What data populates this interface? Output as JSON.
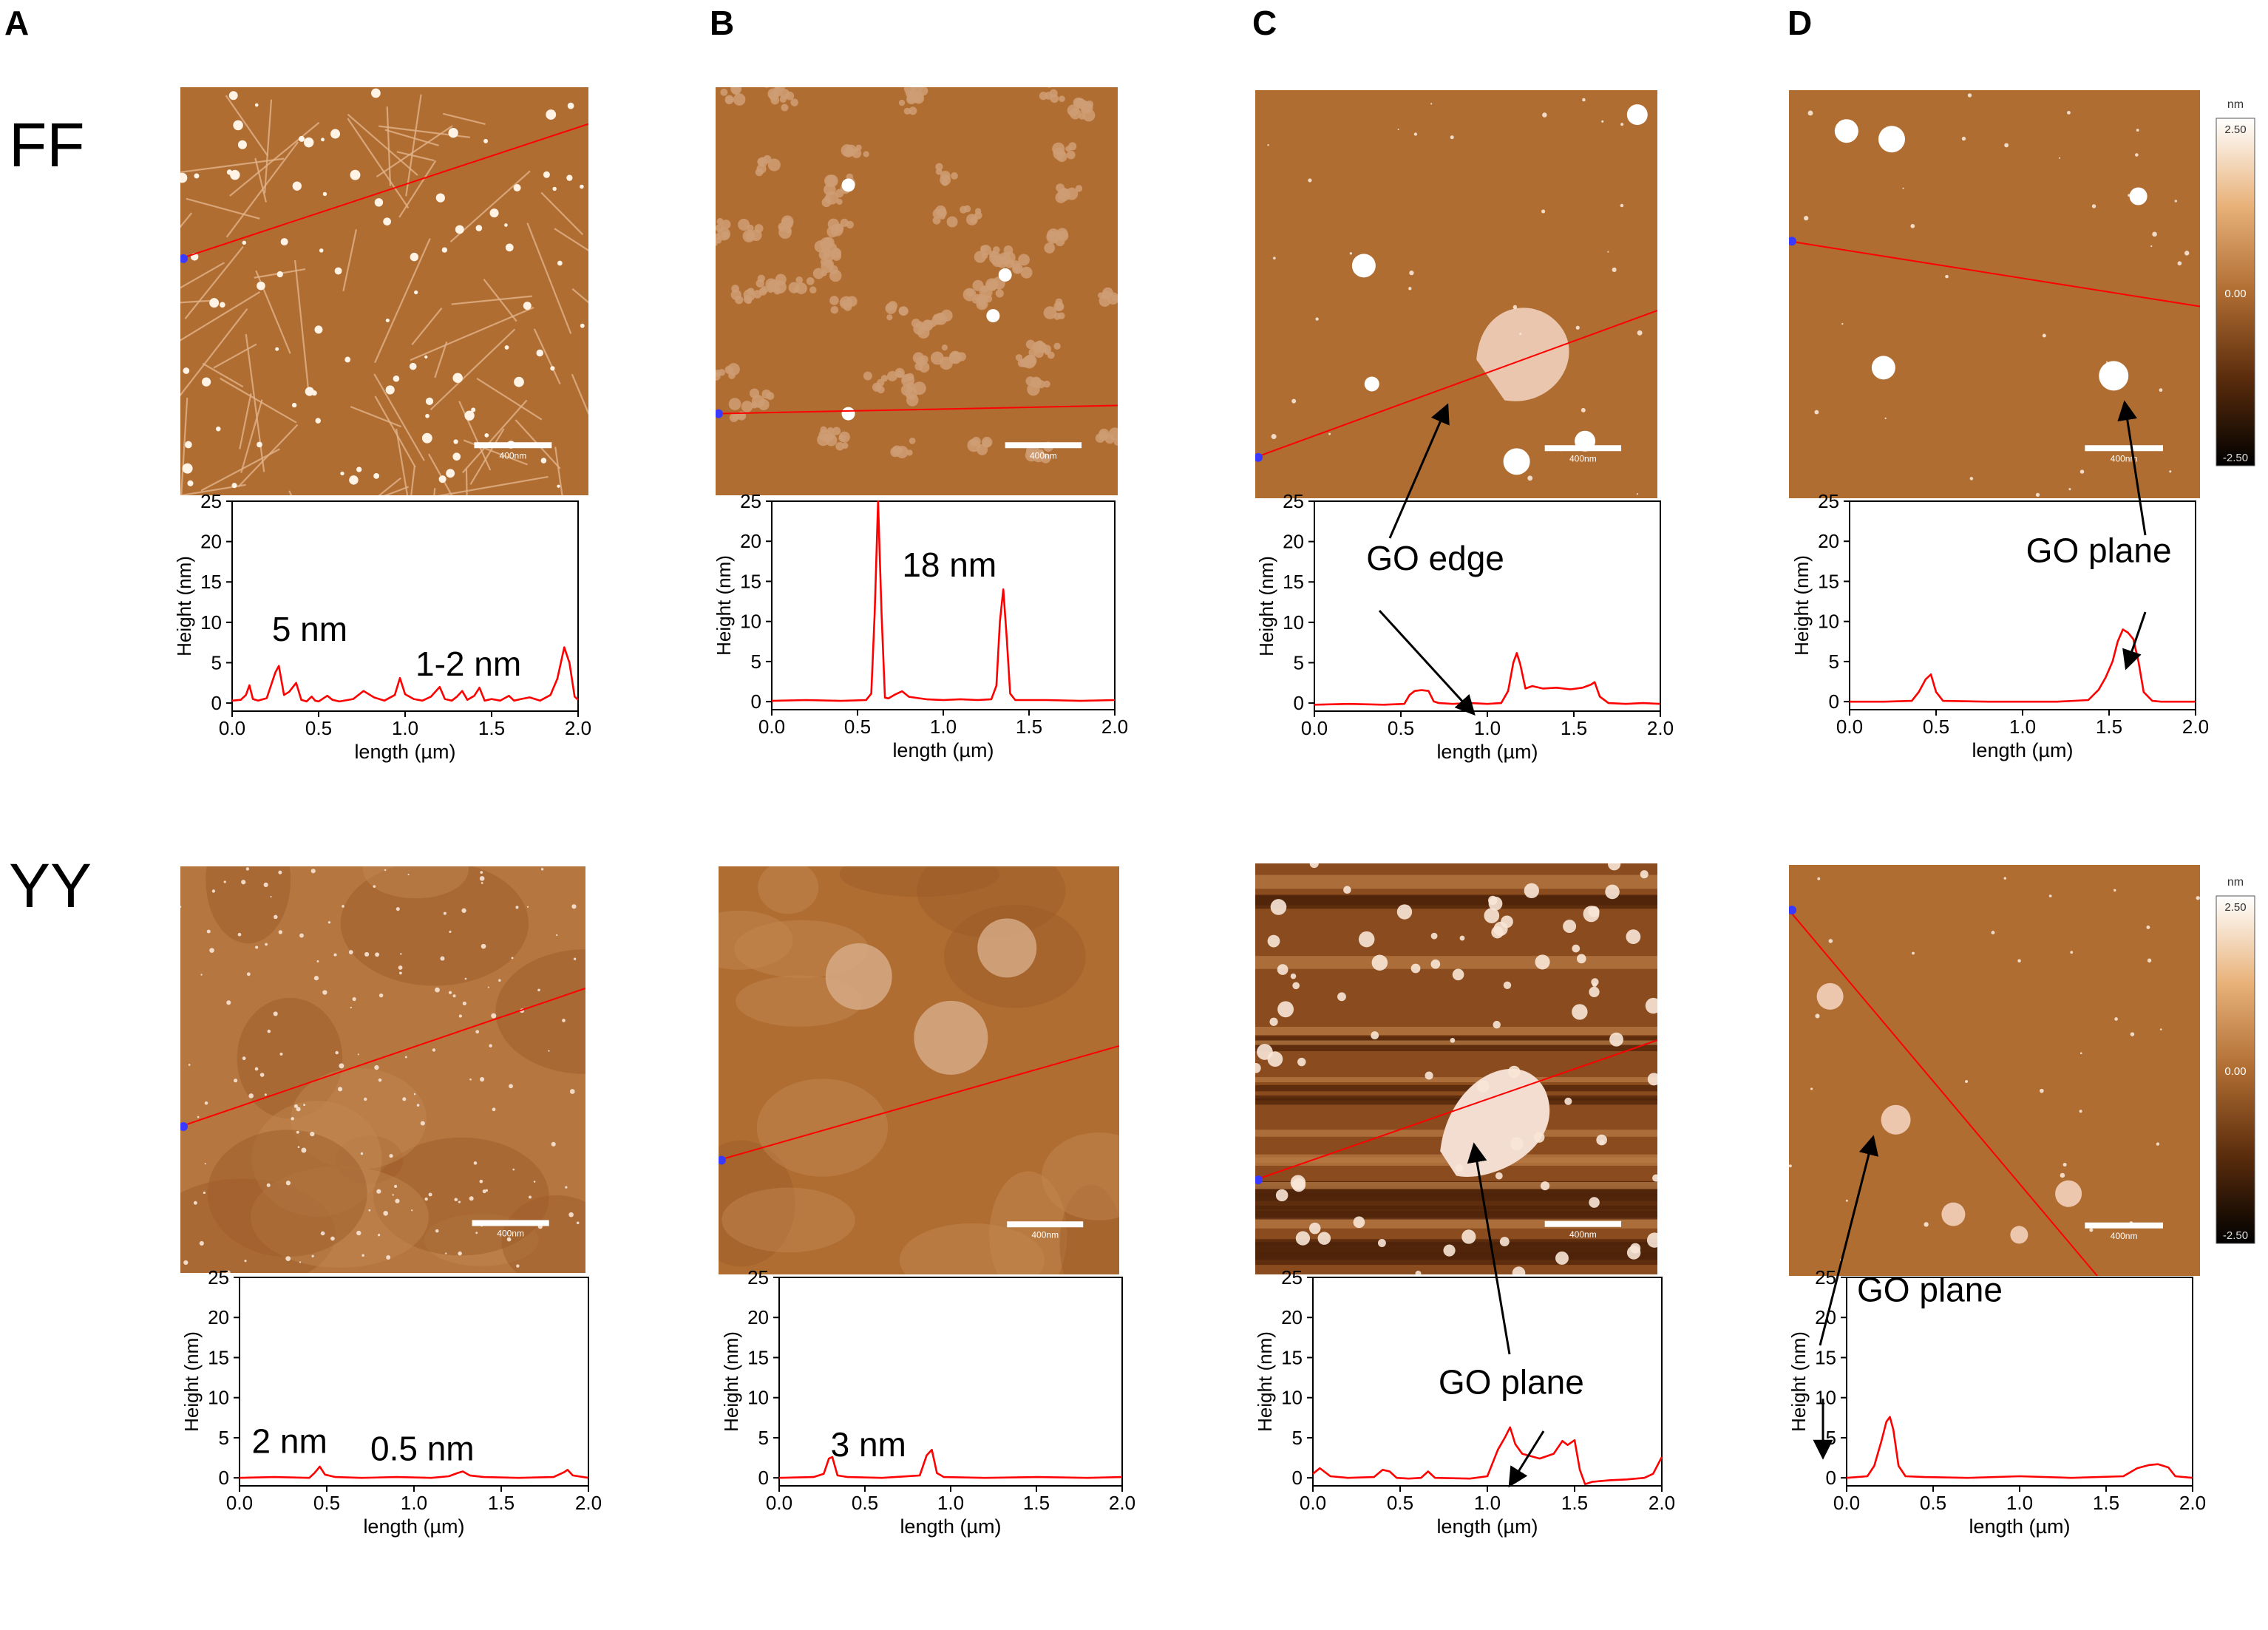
{
  "figure": {
    "column_letters": [
      "A",
      "B",
      "C",
      "D"
    ],
    "row_labels": [
      "FF",
      "YY"
    ],
    "afm_scalebar_label": "400nm",
    "colorbar": {
      "unit": "nm",
      "top": "2.50",
      "mid": "0.00",
      "bottom": "-2.50"
    },
    "colors": {
      "afm_base": "#b06d32",
      "afm_dark": "#5a2c0c",
      "profile": "#ff0000",
      "marker": "#3a3aff"
    }
  },
  "chart_data": [
    {
      "id": "FF-A",
      "type": "line",
      "xlabel": "length (µm)",
      "ylabel": "Height (nm)",
      "xlim": [
        0,
        2.0
      ],
      "ylim": [
        -1,
        25
      ],
      "xticks": [
        "0.0",
        "0.5",
        "1.0",
        "1.5",
        "2.0"
      ],
      "yticks": [
        "0",
        "5",
        "10",
        "15",
        "20",
        "25"
      ],
      "annotations": [
        {
          "text": "5 nm",
          "x": 0.23,
          "y": 7.7
        },
        {
          "text": "1-2 nm",
          "x": 1.06,
          "y": 3.4
        }
      ],
      "series": [
        {
          "x": [
            0,
            0.05,
            0.08,
            0.1,
            0.12,
            0.15,
            0.2,
            0.25,
            0.27,
            0.3,
            0.33,
            0.37,
            0.4,
            0.43,
            0.46,
            0.48,
            0.5,
            0.55,
            0.58,
            0.62,
            0.7,
            0.76,
            0.82,
            0.88,
            0.94,
            0.97,
            1.0,
            1.05,
            1.1,
            1.15,
            1.2,
            1.23,
            1.27,
            1.3,
            1.33,
            1.36,
            1.4,
            1.43,
            1.46,
            1.5,
            1.55,
            1.6,
            1.63,
            1.67,
            1.72,
            1.78,
            1.84,
            1.88,
            1.92,
            1.95,
            1.98,
            2.0
          ],
          "y": [
            0.3,
            0.4,
            1.0,
            2.2,
            0.5,
            0.3,
            0.6,
            3.8,
            4.6,
            1.0,
            1.4,
            2.5,
            0.4,
            0.2,
            0.8,
            0.3,
            0.2,
            0.9,
            0.4,
            0.2,
            0.5,
            1.5,
            0.7,
            0.3,
            1.0,
            3.1,
            1.1,
            0.5,
            0.3,
            0.8,
            2.0,
            0.5,
            0.3,
            0.8,
            1.5,
            0.4,
            0.9,
            1.9,
            0.3,
            0.5,
            0.3,
            0.9,
            0.3,
            0.5,
            0.7,
            0.3,
            1.0,
            3.0,
            6.9,
            5.0,
            0.8,
            0.4
          ]
        }
      ]
    },
    {
      "id": "FF-B",
      "type": "line",
      "xlabel": "length (µm)",
      "ylabel": "Height (nm)",
      "xlim": [
        0,
        2.0
      ],
      "ylim": [
        -1,
        25
      ],
      "xticks": [
        "0.0",
        "0.5",
        "1.0",
        "1.5",
        "2.0"
      ],
      "yticks": [
        "0",
        "5",
        "10",
        "15",
        "20",
        "25"
      ],
      "annotations": [
        {
          "text": "18 nm",
          "x": 0.76,
          "y": 15.6
        }
      ],
      "series": [
        {
          "x": [
            0,
            0.2,
            0.4,
            0.55,
            0.58,
            0.6,
            0.62,
            0.64,
            0.66,
            0.68,
            0.72,
            0.76,
            0.8,
            0.9,
            1.0,
            1.1,
            1.2,
            1.28,
            1.31,
            1.33,
            1.35,
            1.37,
            1.39,
            1.42,
            1.6,
            1.8,
            2.0
          ],
          "y": [
            0.1,
            0.2,
            0.1,
            0.2,
            1.0,
            11.0,
            25.0,
            11.0,
            0.5,
            0.4,
            0.9,
            1.3,
            0.6,
            0.3,
            0.2,
            0.3,
            0.2,
            0.3,
            2.0,
            10.0,
            14.0,
            8.0,
            1.0,
            0.2,
            0.2,
            0.1,
            0.2
          ]
        }
      ]
    },
    {
      "id": "FF-C",
      "type": "line",
      "xlabel": "length (µm)",
      "ylabel": "Height (nm)",
      "xlim": [
        0,
        2.0
      ],
      "ylim": [
        -1,
        25
      ],
      "xticks": [
        "0.0",
        "0.5",
        "1.0",
        "1.5",
        "2.0"
      ],
      "yticks": [
        "0",
        "5",
        "10",
        "15",
        "20",
        "25"
      ],
      "annotations": [
        {
          "text": "GO edge",
          "x": 0.3,
          "y": 16.5
        }
      ],
      "series": [
        {
          "x": [
            0,
            0.2,
            0.4,
            0.52,
            0.55,
            0.58,
            0.62,
            0.66,
            0.69,
            0.72,
            0.8,
            0.9,
            1.0,
            1.08,
            1.12,
            1.15,
            1.17,
            1.19,
            1.22,
            1.26,
            1.32,
            1.4,
            1.48,
            1.55,
            1.6,
            1.62,
            1.65,
            1.7,
            1.8,
            1.9,
            2.0
          ],
          "y": [
            -0.2,
            -0.1,
            -0.2,
            -0.1,
            1.0,
            1.5,
            1.6,
            1.5,
            0.2,
            0.0,
            -0.1,
            0.0,
            -0.1,
            0.0,
            1.5,
            5.0,
            6.2,
            4.8,
            1.8,
            2.1,
            1.8,
            1.9,
            1.7,
            1.9,
            2.3,
            2.6,
            0.8,
            0.0,
            -0.1,
            0.0,
            -0.1
          ]
        }
      ]
    },
    {
      "id": "FF-D",
      "type": "line",
      "xlabel": "length (µm)",
      "ylabel": "Height (nm)",
      "xlim": [
        0,
        2.0
      ],
      "ylim": [
        -1,
        25
      ],
      "xticks": [
        "0.0",
        "0.5",
        "1.0",
        "1.5",
        "2.0"
      ],
      "yticks": [
        "0",
        "5",
        "10",
        "15",
        "20",
        "25"
      ],
      "annotations": [
        {
          "text": "GO plane",
          "x": 1.02,
          "y": 17.4
        }
      ],
      "series": [
        {
          "x": [
            0,
            0.2,
            0.36,
            0.4,
            0.44,
            0.47,
            0.5,
            0.54,
            0.8,
            1.0,
            1.2,
            1.38,
            1.44,
            1.48,
            1.52,
            1.55,
            1.58,
            1.61,
            1.64,
            1.67,
            1.7,
            1.75,
            1.8,
            2.0
          ],
          "y": [
            0.0,
            0.0,
            0.1,
            1.2,
            2.8,
            3.4,
            1.2,
            0.1,
            0.0,
            0.0,
            0.0,
            0.2,
            1.5,
            3.0,
            5.0,
            7.5,
            9.0,
            8.6,
            7.8,
            5.0,
            1.2,
            0.1,
            0.0,
            0.0
          ]
        }
      ]
    },
    {
      "id": "YY-A",
      "type": "line",
      "xlabel": "length (µm)",
      "ylabel": "Height (nm)",
      "xlim": [
        0,
        2.0
      ],
      "ylim": [
        -1,
        25
      ],
      "xticks": [
        "0.0",
        "0.5",
        "1.0",
        "1.5",
        "2.0"
      ],
      "yticks": [
        "0",
        "5",
        "10",
        "15",
        "20",
        "25"
      ],
      "annotations": [
        {
          "text": "2 nm",
          "x": 0.07,
          "y": 3.1
        },
        {
          "text": "0.5 nm",
          "x": 0.75,
          "y": 2.2
        }
      ],
      "series": [
        {
          "x": [
            0,
            0.2,
            0.4,
            0.43,
            0.46,
            0.49,
            0.55,
            0.7,
            0.9,
            1.1,
            1.2,
            1.25,
            1.28,
            1.32,
            1.4,
            1.6,
            1.8,
            1.86,
            1.88,
            1.91,
            2.0
          ],
          "y": [
            0.0,
            0.1,
            0.0,
            0.6,
            1.4,
            0.4,
            0.1,
            0.0,
            0.1,
            0.0,
            0.2,
            0.6,
            0.8,
            0.3,
            0.1,
            0.0,
            0.1,
            0.7,
            1.0,
            0.3,
            0.0
          ]
        }
      ]
    },
    {
      "id": "YY-B",
      "type": "line",
      "xlabel": "length (µm)",
      "ylabel": "Height (nm)",
      "xlim": [
        0,
        2.0
      ],
      "ylim": [
        -1,
        25
      ],
      "xticks": [
        "0.0",
        "0.5",
        "1.0",
        "1.5",
        "2.0"
      ],
      "yticks": [
        "0",
        "5",
        "10",
        "15",
        "20",
        "25"
      ],
      "annotations": [
        {
          "text": "3 nm",
          "x": 0.3,
          "y": 2.7
        }
      ],
      "series": [
        {
          "x": [
            0,
            0.2,
            0.26,
            0.29,
            0.31,
            0.34,
            0.4,
            0.6,
            0.82,
            0.86,
            0.89,
            0.92,
            0.96,
            1.2,
            1.5,
            1.8,
            2.0
          ],
          "y": [
            0.0,
            0.1,
            0.5,
            2.4,
            2.6,
            0.3,
            0.1,
            0.0,
            0.3,
            2.8,
            3.5,
            0.6,
            0.1,
            0.0,
            0.1,
            0.0,
            0.1
          ]
        }
      ]
    },
    {
      "id": "YY-C",
      "type": "line",
      "xlabel": "length (µm)",
      "ylabel": "Height (nm)",
      "xlim": [
        0,
        2.0
      ],
      "ylim": [
        -1,
        25
      ],
      "xticks": [
        "0.0",
        "0.5",
        "1.0",
        "1.5",
        "2.0"
      ],
      "yticks": [
        "0",
        "5",
        "10",
        "15",
        "20",
        "25"
      ],
      "annotations": [
        {
          "text": "GO plane",
          "x": 0.72,
          "y": 10.5
        }
      ],
      "series": [
        {
          "x": [
            0,
            0.04,
            0.1,
            0.2,
            0.35,
            0.4,
            0.44,
            0.48,
            0.55,
            0.62,
            0.66,
            0.7,
            0.9,
            1.0,
            1.06,
            1.1,
            1.13,
            1.16,
            1.2,
            1.3,
            1.38,
            1.43,
            1.46,
            1.5,
            1.53,
            1.56,
            1.6,
            1.7,
            1.8,
            1.9,
            1.95,
            2.0
          ],
          "y": [
            0.5,
            1.2,
            0.2,
            0.0,
            0.1,
            1.0,
            0.8,
            0.0,
            -0.1,
            0.0,
            0.8,
            0.0,
            -0.1,
            0.2,
            3.5,
            5.0,
            6.3,
            4.2,
            3.0,
            2.4,
            3.0,
            4.6,
            4.1,
            4.7,
            1.0,
            -0.8,
            -0.5,
            -0.3,
            -0.2,
            0.0,
            0.5,
            2.6
          ]
        }
      ]
    },
    {
      "id": "YY-D",
      "type": "line",
      "xlabel": "length (µm)",
      "ylabel": "Height (nm)",
      "xlim": [
        0,
        2.0
      ],
      "ylim": [
        -1,
        25
      ],
      "xticks": [
        "0.0",
        "0.5",
        "1.0",
        "1.5",
        "2.0"
      ],
      "yticks": [
        "0",
        "5",
        "10",
        "15",
        "20",
        "25"
      ],
      "annotations": [
        {
          "text": "GO plane",
          "x": 0.06,
          "y": 22.0
        }
      ],
      "series": [
        {
          "x": [
            0,
            0.12,
            0.16,
            0.2,
            0.23,
            0.25,
            0.27,
            0.3,
            0.34,
            0.45,
            0.7,
            1.0,
            1.3,
            1.6,
            1.68,
            1.75,
            1.8,
            1.86,
            1.9,
            2.0
          ],
          "y": [
            0.0,
            0.2,
            1.5,
            4.5,
            7.0,
            7.6,
            6.0,
            1.5,
            0.2,
            0.1,
            0.0,
            0.2,
            0.0,
            0.2,
            1.2,
            1.6,
            1.7,
            1.3,
            0.2,
            0.0
          ]
        }
      ]
    }
  ]
}
